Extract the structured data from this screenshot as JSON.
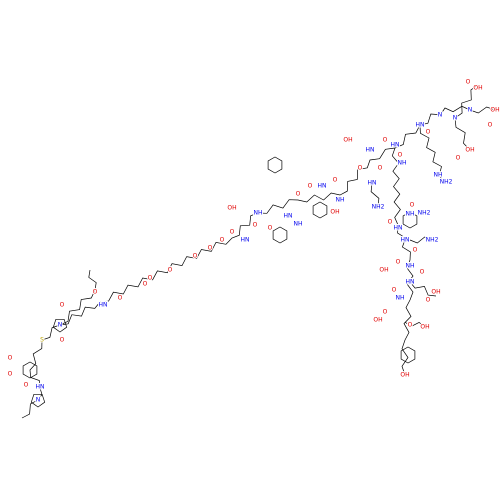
{
  "atoms": [
    "O",
    "O",
    "O",
    "HN",
    "N",
    "S",
    "O",
    "N",
    "O",
    "O",
    "HN",
    "O",
    "O",
    "O",
    "O",
    "O",
    "O",
    "O",
    "O",
    "HN",
    "OH",
    "O",
    "NH",
    "O",
    "HN",
    "O",
    "NH",
    "OH",
    "O",
    "HN",
    "O",
    "NH",
    "OH",
    "O",
    "HN",
    "O",
    "HN",
    "NH2",
    "O",
    "HN",
    "O",
    "NH",
    "HN",
    "O",
    "N",
    "N",
    "N",
    "O",
    "OH",
    "O",
    "OH",
    "O",
    "OH",
    "NH",
    "NH2",
    "O",
    "HN",
    "O",
    "NH",
    "NH2",
    "HN",
    "O",
    "NH2",
    "NH",
    "O",
    "OH",
    "HN",
    "O",
    "O",
    "OH",
    "NH",
    "O",
    "OH",
    "O",
    "O",
    "OH",
    "OH"
  ]
}
